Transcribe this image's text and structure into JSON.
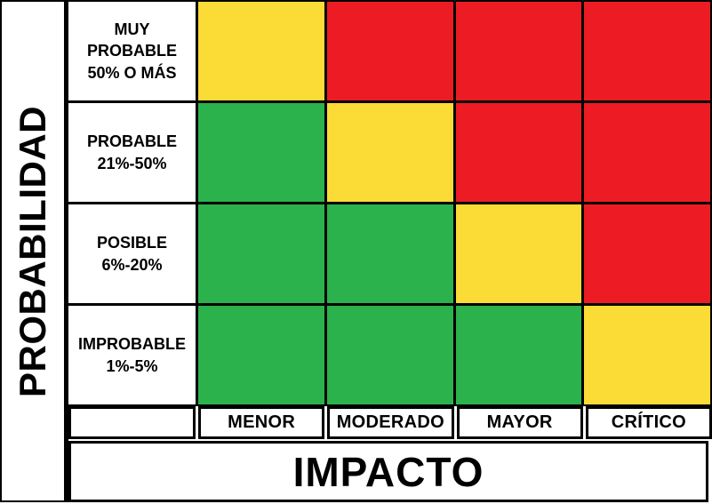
{
  "chart_data": {
    "type": "heatmap",
    "x_axis_label": "IMPACTO",
    "y_axis_label": "PROBABILIDAD",
    "columns": [
      "MENOR",
      "MODERADO",
      "MAYOR",
      "CRÍTICO"
    ],
    "rows": [
      {
        "label": "MUY PROBABLE",
        "range": "50% O MÁS",
        "cells": [
          "medium",
          "high",
          "high",
          "high"
        ]
      },
      {
        "label": "PROBABLE",
        "range": "21%-50%",
        "cells": [
          "low",
          "medium",
          "high",
          "high"
        ]
      },
      {
        "label": "POSIBLE",
        "range": "6%-20%",
        "cells": [
          "low",
          "low",
          "medium",
          "high"
        ]
      },
      {
        "label": "IMPROBABLE",
        "range": "1%-5%",
        "cells": [
          "low",
          "low",
          "low",
          "medium"
        ]
      }
    ],
    "colors": {
      "low": "#2BB24C",
      "medium": "#FBDB35",
      "high": "#ED1C24"
    },
    "layout": {
      "legend": "none",
      "grid_lines": "black",
      "cell_text": "none"
    }
  }
}
